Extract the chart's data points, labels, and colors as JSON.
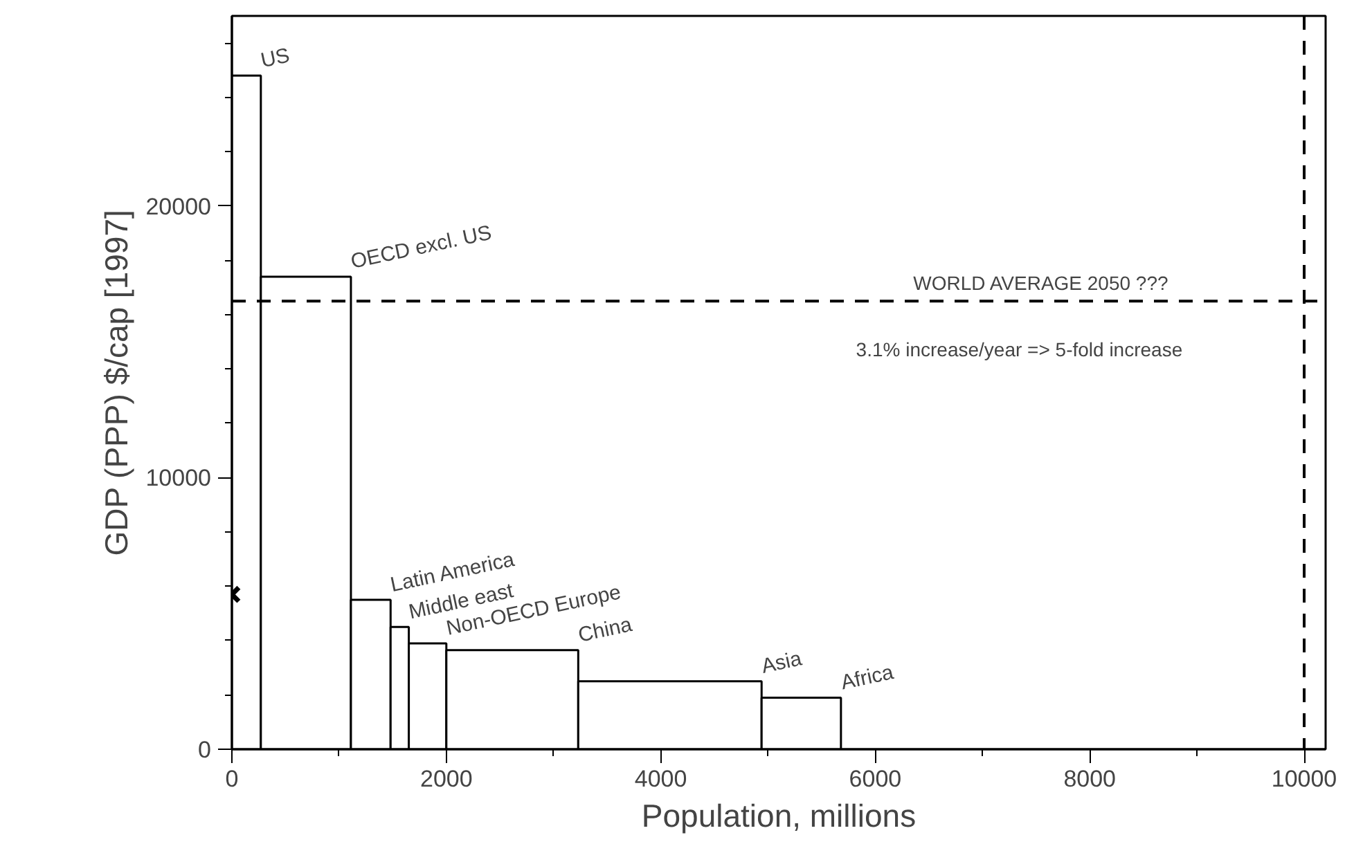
{
  "chart_data": {
    "type": "histogram",
    "xlabel": "Population, millions",
    "ylabel": "GDP (PPP) $/cap [1997]",
    "bins": [
      0,
      270,
      1110,
      1480,
      1650,
      2000,
      3230,
      4940,
      5680
    ],
    "values": [
      24800,
      17400,
      5500,
      4500,
      3900,
      3650,
      2500,
      1900
    ],
    "color": "#ffffff",
    "xlim": [
      0,
      10200
    ],
    "ylim": [
      0,
      27000
    ],
    "xticks": [
      0,
      {
        "value": 1000,
        "label": null
      },
      2000,
      {
        "value": 3000,
        "label": null
      },
      4000,
      {
        "value": 5000,
        "label": null
      },
      6000,
      {
        "value": 7000,
        "label": null
      },
      8000,
      {
        "value": 9000,
        "label": null
      },
      10000
    ],
    "yticks": [
      0,
      {
        "value": 2000,
        "label": null
      },
      {
        "value": 4000,
        "label": null
      },
      {
        "value": 6000,
        "label": null
      },
      {
        "value": 8000,
        "label": null
      },
      10000,
      {
        "value": 12000,
        "label": null
      },
      {
        "value": 14000,
        "label": null
      },
      {
        "value": 16000,
        "label": null
      },
      {
        "value": 18000,
        "label": null
      },
      20000,
      {
        "value": 22000,
        "label": null
      },
      {
        "value": 24000,
        "label": null
      },
      {
        "value": 26000,
        "label": null
      }
    ],
    "series": [
      {
        "type": "scatter",
        "x": [
          0
        ],
        "values": [
          5700
        ],
        "color": "#000000",
        "marker": "cross"
      }
    ],
    "ref_lines": [
      {
        "axis": "y",
        "value": 16500,
        "color": "#000000",
        "line_style": "dashed"
      },
      {
        "axis": "x",
        "value": 10000,
        "color": "#000000",
        "line_style": "dashed"
      }
    ],
    "annotations": [
      {
        "text": "US",
        "x": 270,
        "y": 24800
      },
      {
        "text": "OECD excl. US",
        "x": 1110,
        "y": 17400
      },
      {
        "text": "Latin America",
        "x": 1480,
        "y": 5500
      },
      {
        "text": "Middle east",
        "x": 1650,
        "y": 4500
      },
      {
        "text": "Non-OECD Europe",
        "x": 2000,
        "y": 3900
      },
      {
        "text": "China",
        "x": 3230,
        "y": 3650
      },
      {
        "text": "Asia",
        "x": 4940,
        "y": 2500
      },
      {
        "text": "Africa",
        "x": 5680,
        "y": 1900
      },
      "WORLD AVERAGE 2050 ???",
      "3.1% increase/year  =>  5-fold increase"
    ]
  }
}
